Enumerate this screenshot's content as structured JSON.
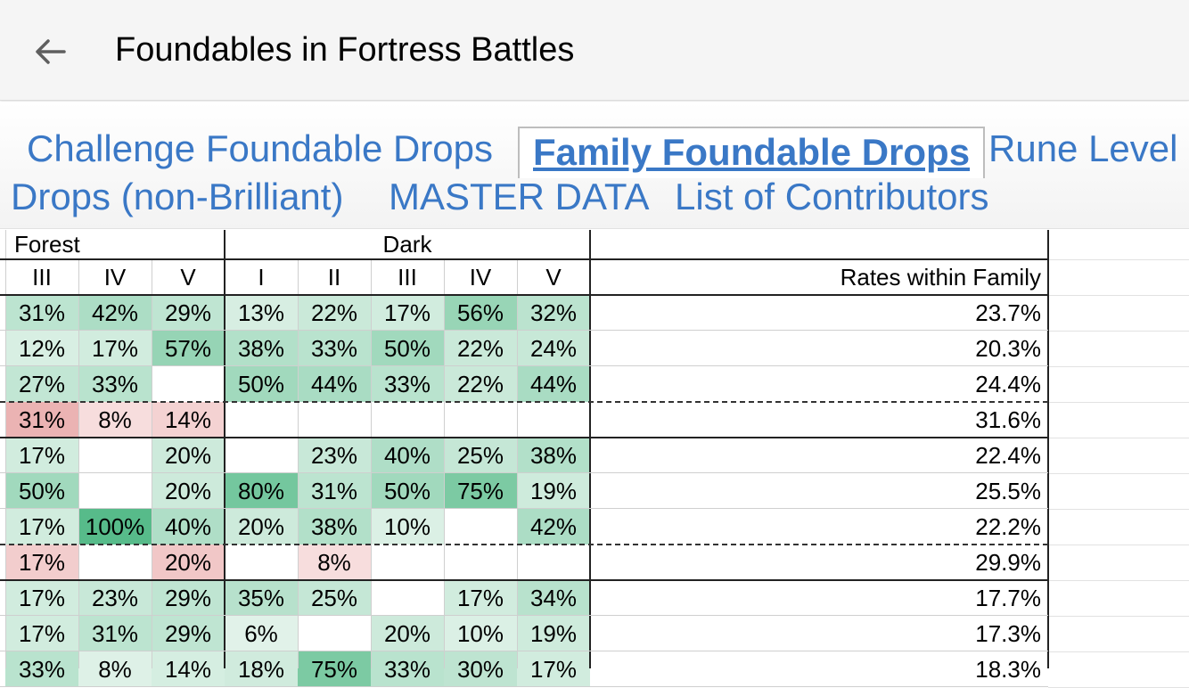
{
  "header": {
    "title": "Foundables in Fortress Battles",
    "back_icon": "arrow-left-icon"
  },
  "tabs": [
    {
      "label": "Challenge Foundable Drops",
      "active": false
    },
    {
      "label": "Family Foundable Drops",
      "active": true
    },
    {
      "label": "Rune Level",
      "active": false
    },
    {
      "label": "Drops (non-Brilliant)",
      "active": false
    },
    {
      "label": "MASTER DATA",
      "active": false
    },
    {
      "label": "List of Contributors",
      "active": false
    }
  ],
  "table": {
    "groups": [
      "Forest",
      "Dark"
    ],
    "columns": [
      "III",
      "IV",
      "V",
      "I",
      "II",
      "III",
      "IV",
      "V"
    ],
    "rates_header": "Rates within Family",
    "rows": [
      {
        "cells": [
          "31%",
          "42%",
          "29%",
          "13%",
          "22%",
          "17%",
          "56%",
          "32%"
        ],
        "rate": "23.7%",
        "tone": "green",
        "divider": "solid"
      },
      {
        "cells": [
          "12%",
          "17%",
          "57%",
          "38%",
          "33%",
          "50%",
          "22%",
          "24%"
        ],
        "rate": "20.3%",
        "tone": "green",
        "divider": "solid"
      },
      {
        "cells": [
          "27%",
          "33%",
          "",
          "50%",
          "44%",
          "33%",
          "22%",
          "44%"
        ],
        "rate": "24.4%",
        "tone": "green",
        "divider": "dashed"
      },
      {
        "cells": [
          "31%",
          "8%",
          "14%",
          "",
          "",
          "",
          "",
          ""
        ],
        "rate": "31.6%",
        "tone": "red",
        "divider": "solid-thick"
      },
      {
        "cells": [
          "17%",
          "",
          "20%",
          "",
          "23%",
          "40%",
          "25%",
          "38%"
        ],
        "rate": "22.4%",
        "tone": "green",
        "divider": "solid"
      },
      {
        "cells": [
          "50%",
          "",
          "20%",
          "80%",
          "31%",
          "50%",
          "75%",
          "19%"
        ],
        "rate": "25.5%",
        "tone": "green",
        "divider": "solid"
      },
      {
        "cells": [
          "17%",
          "100%",
          "40%",
          "20%",
          "38%",
          "10%",
          "",
          "42%"
        ],
        "rate": "22.2%",
        "tone": "green",
        "divider": "dashed"
      },
      {
        "cells": [
          "17%",
          "",
          "20%",
          "",
          "8%",
          "",
          "",
          ""
        ],
        "rate": "29.9%",
        "tone": "red",
        "divider": "solid-thick"
      },
      {
        "cells": [
          "17%",
          "23%",
          "29%",
          "35%",
          "25%",
          "",
          "17%",
          "34%"
        ],
        "rate": "17.7%",
        "tone": "green",
        "divider": "solid"
      },
      {
        "cells": [
          "17%",
          "31%",
          "29%",
          "6%",
          "",
          "20%",
          "10%",
          "19%"
        ],
        "rate": "17.3%",
        "tone": "green",
        "divider": "solid"
      },
      {
        "cells": [
          "33%",
          "8%",
          "14%",
          "18%",
          "75%",
          "33%",
          "30%",
          "17%"
        ],
        "rate": "18.3%",
        "tone": "green",
        "divider": "solid"
      }
    ]
  }
}
